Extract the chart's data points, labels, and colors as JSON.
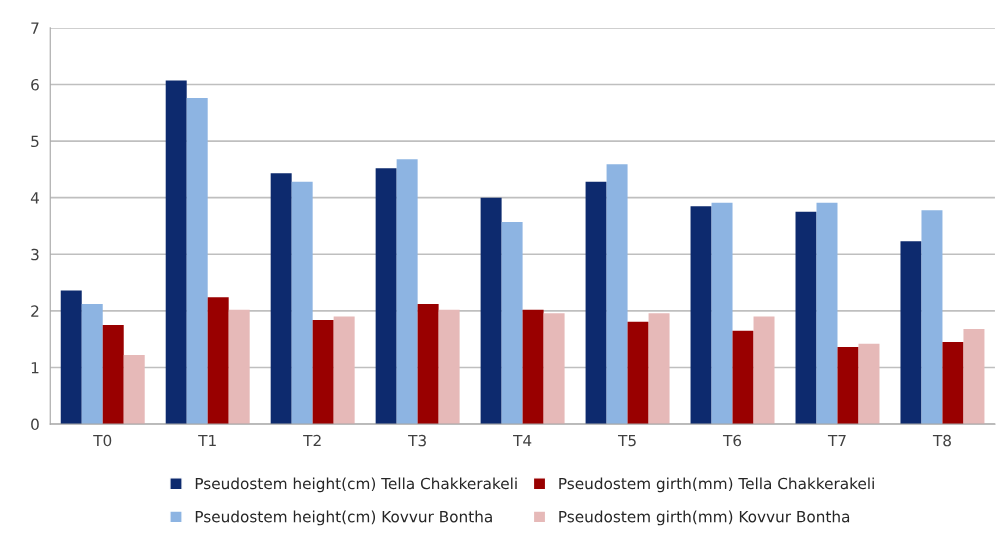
{
  "chart_data": {
    "type": "bar",
    "categories": [
      "T0",
      "T1",
      "T2",
      "T3",
      "T4",
      "T5",
      "T6",
      "T7",
      "T8"
    ],
    "series": [
      {
        "name": "Pseudostem height(cm) Tella Chakkerakeli",
        "color": "#0d2a6e",
        "values": [
          2.36,
          6.07,
          4.43,
          4.52,
          4.0,
          4.28,
          3.85,
          3.75,
          3.23
        ]
      },
      {
        "name": "Pseudostem height(cm) Kovvur Bontha",
        "color": "#8db4e2",
        "values": [
          2.12,
          5.76,
          4.28,
          4.68,
          3.57,
          4.59,
          3.91,
          3.91,
          3.78
        ]
      },
      {
        "name": "Pseudostem girth(mm) Tella Chakkerakeli",
        "color": "#990000",
        "values": [
          1.75,
          2.24,
          1.84,
          2.12,
          2.02,
          1.81,
          1.65,
          1.36,
          1.45
        ]
      },
      {
        "name": "Pseudostem girth(mm) Kovvur Bontha",
        "color": "#e6b9b8",
        "values": [
          1.22,
          2.02,
          1.9,
          2.02,
          1.96,
          1.96,
          1.9,
          1.42,
          1.68
        ]
      }
    ],
    "ylim": [
      0,
      7
    ],
    "yticks": [
      0,
      1,
      2,
      3,
      4,
      5,
      6,
      7
    ],
    "grid": "y",
    "legend": "bottom"
  }
}
